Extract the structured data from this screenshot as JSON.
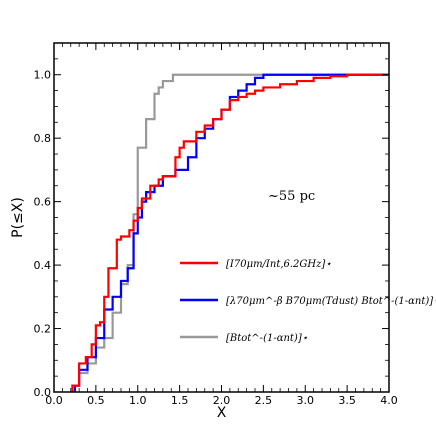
{
  "chart_data": {
    "type": "line",
    "step": true,
    "xlabel": "X",
    "ylabel": "P(≤X)",
    "xlim": [
      0.0,
      4.0
    ],
    "ylim": [
      0.0,
      1.1
    ],
    "xticks": [
      "0.0",
      "0.5",
      "1.0",
      "1.5",
      "2.0",
      "2.5",
      "3.0",
      "3.5",
      "4.0"
    ],
    "yticks": [
      "0.0",
      "0.2",
      "0.4",
      "0.6",
      "0.8",
      "1.0"
    ],
    "grid": false,
    "annotation": "~55 pc",
    "legend_position": "center-right",
    "series": [
      {
        "name": "[I70μm/Int,6.2GHz]⋆",
        "color": "#ff0000",
        "x": [
          0.22,
          0.3,
          0.38,
          0.45,
          0.5,
          0.55,
          0.6,
          0.65,
          0.75,
          0.8,
          0.9,
          0.95,
          1.0,
          1.05,
          1.15,
          1.25,
          1.3,
          1.45,
          1.5,
          1.55,
          1.7,
          1.8,
          1.9,
          2.0,
          2.1,
          2.2,
          2.3,
          2.4,
          2.5,
          2.7,
          2.9,
          3.1,
          3.3,
          3.5,
          4.0
        ],
        "y": [
          0.02,
          0.09,
          0.11,
          0.15,
          0.21,
          0.22,
          0.3,
          0.39,
          0.48,
          0.49,
          0.51,
          0.54,
          0.58,
          0.61,
          0.65,
          0.67,
          0.68,
          0.74,
          0.77,
          0.79,
          0.82,
          0.84,
          0.86,
          0.89,
          0.92,
          0.93,
          0.94,
          0.95,
          0.96,
          0.97,
          0.98,
          0.99,
          0.995,
          1.0,
          1.0
        ]
      },
      {
        "name": "[λ70μm^-β B70μm(Tdust) Btot^-(1-αnt)]⋆",
        "color": "#0000ff",
        "x": [
          0.25,
          0.3,
          0.4,
          0.5,
          0.6,
          0.7,
          0.8,
          0.88,
          0.95,
          1.0,
          1.05,
          1.1,
          1.2,
          1.3,
          1.45,
          1.6,
          1.7,
          1.8,
          1.9,
          2.0,
          2.1,
          2.2,
          2.3,
          2.4,
          2.5,
          4.0
        ],
        "y": [
          0.02,
          0.07,
          0.11,
          0.17,
          0.26,
          0.3,
          0.35,
          0.39,
          0.5,
          0.55,
          0.6,
          0.63,
          0.65,
          0.68,
          0.7,
          0.74,
          0.8,
          0.83,
          0.86,
          0.89,
          0.93,
          0.95,
          0.97,
          0.99,
          1.0,
          1.0
        ]
      },
      {
        "name": "[Btot^-(1-αnt)]⋆",
        "color": "#999999",
        "x": [
          0.22,
          0.3,
          0.4,
          0.5,
          0.6,
          0.7,
          0.8,
          0.88,
          0.95,
          1.0,
          1.1,
          1.2,
          1.25,
          1.3,
          1.42,
          4.0
        ],
        "y": [
          0.02,
          0.06,
          0.09,
          0.14,
          0.17,
          0.25,
          0.34,
          0.4,
          0.56,
          0.77,
          0.86,
          0.94,
          0.96,
          0.98,
          1.0,
          1.0
        ]
      }
    ]
  }
}
